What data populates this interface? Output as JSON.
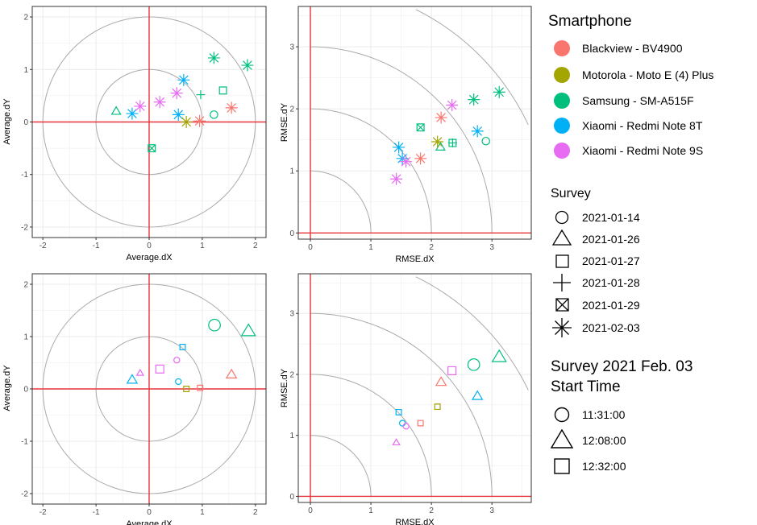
{
  "legend": {
    "smartphone": {
      "title": "Smartphone",
      "items": [
        {
          "label": "Blackview - BV4900",
          "color": "#F8766D"
        },
        {
          "label": "Motorola - Moto E (4) Plus",
          "color": "#A3A500"
        },
        {
          "label": "Samsung - SM-A515F",
          "color": "#00BF7D"
        },
        {
          "label": "Xiaomi - Redmi Note 8T",
          "color": "#00B0F6"
        },
        {
          "label": "Xiaomi - Redmi Note 9S",
          "color": "#E76BF3"
        }
      ]
    },
    "survey": {
      "title": "Survey",
      "items": [
        {
          "label": "2021-01-14",
          "shape": "circle"
        },
        {
          "label": "2021-01-26",
          "shape": "triangle"
        },
        {
          "label": "2021-01-27",
          "shape": "square"
        },
        {
          "label": "2021-01-28",
          "shape": "plus"
        },
        {
          "label": "2021-01-29",
          "shape": "boxx"
        },
        {
          "label": "2021-02-03",
          "shape": "asterisk"
        }
      ]
    },
    "start_time": {
      "title_line1": "Survey 2021 Feb. 03",
      "title_line2": "Start Time",
      "items": [
        {
          "label": "11:31:00",
          "shape": "circle"
        },
        {
          "label": "12:08:00",
          "shape": "triangle"
        },
        {
          "label": "12:32:00",
          "shape": "square"
        }
      ]
    }
  },
  "chart_data": [
    {
      "type": "scatter",
      "xlabel": "Average.dX",
      "ylabel": "Average.dY",
      "xlim": [
        -2.2,
        2.2
      ],
      "ylim": [
        -2.2,
        2.2
      ],
      "xticks": [
        -2,
        -1,
        0,
        1,
        2
      ],
      "yticks": [
        -2,
        -1,
        0,
        1,
        2
      ],
      "grid": true,
      "reference_circles_radius": [
        1,
        2
      ],
      "reference_lines": {
        "x": 0,
        "y": 0,
        "color": "#e8343a"
      },
      "points": [
        {
          "x": 1.22,
          "y": 0.14,
          "series": "Samsung - SM-A515F",
          "shape": "circle"
        },
        {
          "x": -0.62,
          "y": 0.2,
          "series": "Samsung - SM-A515F",
          "shape": "triangle"
        },
        {
          "x": 1.39,
          "y": 0.6,
          "series": "Samsung - SM-A515F",
          "shape": "square"
        },
        {
          "x": 0.97,
          "y": 0.52,
          "series": "Samsung - SM-A515F",
          "shape": "plus"
        },
        {
          "x": 0.05,
          "y": -0.5,
          "series": "Samsung - SM-A515F",
          "shape": "boxx"
        },
        {
          "x": 1.22,
          "y": 1.22,
          "series": "Samsung - SM-A515F",
          "shape": "asterisk"
        },
        {
          "x": 1.85,
          "y": 1.08,
          "series": "Samsung - SM-A515F",
          "shape": "asterisk"
        },
        {
          "x": -0.32,
          "y": 0.16,
          "series": "Xiaomi - Redmi Note 8T",
          "shape": "asterisk"
        },
        {
          "x": 0.65,
          "y": 0.8,
          "series": "Xiaomi - Redmi Note 8T",
          "shape": "asterisk"
        },
        {
          "x": 0.55,
          "y": 0.14,
          "series": "Xiaomi - Redmi Note 8T",
          "shape": "asterisk"
        },
        {
          "x": 0.2,
          "y": 0.38,
          "series": "Xiaomi - Redmi Note 9S",
          "shape": "asterisk"
        },
        {
          "x": 0.52,
          "y": 0.55,
          "series": "Xiaomi - Redmi Note 9S",
          "shape": "asterisk"
        },
        {
          "x": -0.17,
          "y": 0.3,
          "series": "Xiaomi - Redmi Note 9S",
          "shape": "asterisk"
        },
        {
          "x": 1.55,
          "y": 0.27,
          "series": "Blackview - BV4900",
          "shape": "asterisk"
        },
        {
          "x": 0.95,
          "y": 0.02,
          "series": "Blackview - BV4900",
          "shape": "asterisk"
        },
        {
          "x": 0.7,
          "y": 0.0,
          "series": "Motorola - Moto E (4) Plus",
          "shape": "asterisk"
        }
      ]
    },
    {
      "type": "scatter",
      "xlabel": "RMSE.dX",
      "ylabel": "RMSE.dY",
      "xlim": [
        -0.2,
        3.65
      ],
      "ylim": [
        -0.1,
        3.65
      ],
      "xticks": [
        0,
        1,
        2,
        3
      ],
      "yticks": [
        0,
        1,
        2,
        3
      ],
      "grid": true,
      "reference_arcs_radius": [
        1,
        2,
        3,
        4
      ],
      "reference_lines": {
        "x": 0,
        "y": 0,
        "color": "#e8343a"
      },
      "points": [
        {
          "x": 2.9,
          "y": 1.48,
          "series": "Samsung - SM-A515F",
          "shape": "circle"
        },
        {
          "x": 2.15,
          "y": 1.38,
          "series": "Samsung - SM-A515F",
          "shape": "triangle"
        },
        {
          "x": 2.35,
          "y": 1.45,
          "series": "Samsung - SM-A515F",
          "shape": "square"
        },
        {
          "x": 2.35,
          "y": 1.45,
          "series": "Samsung - SM-A515F",
          "shape": "plus"
        },
        {
          "x": 1.82,
          "y": 1.7,
          "series": "Samsung - SM-A515F",
          "shape": "boxx"
        },
        {
          "x": 2.7,
          "y": 2.15,
          "series": "Samsung - SM-A515F",
          "shape": "asterisk"
        },
        {
          "x": 3.12,
          "y": 2.27,
          "series": "Samsung - SM-A515F",
          "shape": "asterisk"
        },
        {
          "x": 2.76,
          "y": 1.64,
          "series": "Xiaomi - Redmi Note 8T",
          "shape": "asterisk"
        },
        {
          "x": 1.46,
          "y": 1.38,
          "series": "Xiaomi - Redmi Note 8T",
          "shape": "asterisk"
        },
        {
          "x": 1.52,
          "y": 1.2,
          "series": "Xiaomi - Redmi Note 8T",
          "shape": "asterisk"
        },
        {
          "x": 2.34,
          "y": 2.06,
          "series": "Xiaomi - Redmi Note 9S",
          "shape": "asterisk"
        },
        {
          "x": 1.58,
          "y": 1.15,
          "series": "Xiaomi - Redmi Note 9S",
          "shape": "asterisk"
        },
        {
          "x": 1.42,
          "y": 0.87,
          "series": "Xiaomi - Redmi Note 9S",
          "shape": "asterisk"
        },
        {
          "x": 2.16,
          "y": 1.86,
          "series": "Blackview - BV4900",
          "shape": "asterisk"
        },
        {
          "x": 1.82,
          "y": 1.2,
          "series": "Blackview - BV4900",
          "shape": "asterisk"
        },
        {
          "x": 2.1,
          "y": 1.47,
          "series": "Motorola - Moto E (4) Plus",
          "shape": "asterisk"
        }
      ]
    },
    {
      "type": "scatter",
      "xlabel": "Average.dX",
      "ylabel": "Average.dY",
      "xlim": [
        -2.2,
        2.2
      ],
      "ylim": [
        -2.2,
        2.2
      ],
      "xticks": [
        -2,
        -1,
        0,
        1,
        2
      ],
      "yticks": [
        -2,
        -1,
        0,
        1,
        2
      ],
      "grid": true,
      "reference_circles_radius": [
        1,
        2
      ],
      "reference_lines": {
        "x": 0,
        "y": 0,
        "color": "#e8343a"
      },
      "points": [
        {
          "x": 1.23,
          "y": 1.22,
          "series": "Samsung - SM-A515F",
          "shape": "circle",
          "size": "large"
        },
        {
          "x": 1.87,
          "y": 1.1,
          "series": "Samsung - SM-A515F",
          "shape": "triangle",
          "size": "large"
        },
        {
          "x": 1.55,
          "y": 0.27,
          "series": "Blackview - BV4900",
          "shape": "triangle",
          "size": "medium"
        },
        {
          "x": 0.96,
          "y": 0.02,
          "series": "Blackview - BV4900",
          "shape": "square",
          "size": "small"
        },
        {
          "x": 0.7,
          "y": 0.0,
          "series": "Motorola - Moto E (4) Plus",
          "shape": "square",
          "size": "small"
        },
        {
          "x": 0.2,
          "y": 0.38,
          "series": "Xiaomi - Redmi Note 9S",
          "shape": "square",
          "size": "medium"
        },
        {
          "x": 0.52,
          "y": 0.55,
          "series": "Xiaomi - Redmi Note 9S",
          "shape": "circle",
          "size": "small"
        },
        {
          "x": -0.17,
          "y": 0.3,
          "series": "Xiaomi - Redmi Note 9S",
          "shape": "triangle",
          "size": "small"
        },
        {
          "x": 0.63,
          "y": 0.8,
          "series": "Xiaomi - Redmi Note 8T",
          "shape": "square",
          "size": "small"
        },
        {
          "x": 0.55,
          "y": 0.14,
          "series": "Xiaomi - Redmi Note 8T",
          "shape": "circle",
          "size": "small"
        },
        {
          "x": -0.32,
          "y": 0.17,
          "series": "Xiaomi - Redmi Note 8T",
          "shape": "triangle",
          "size": "medium"
        }
      ]
    },
    {
      "type": "scatter",
      "xlabel": "RMSE.dX",
      "ylabel": "RMSE.dY",
      "xlim": [
        -0.2,
        3.65
      ],
      "ylim": [
        -0.1,
        3.65
      ],
      "xticks": [
        0,
        1,
        2,
        3
      ],
      "yticks": [
        0,
        1,
        2,
        3
      ],
      "grid": true,
      "reference_arcs_radius": [
        1,
        2,
        3,
        4
      ],
      "reference_lines": {
        "x": 0,
        "y": 0,
        "color": "#e8343a"
      },
      "points": [
        {
          "x": 3.12,
          "y": 2.28,
          "series": "Samsung - SM-A515F",
          "shape": "triangle",
          "size": "large"
        },
        {
          "x": 2.7,
          "y": 2.16,
          "series": "Samsung - SM-A515F",
          "shape": "circle",
          "size": "large"
        },
        {
          "x": 2.34,
          "y": 2.06,
          "series": "Xiaomi - Redmi Note 9S",
          "shape": "square",
          "size": "medium"
        },
        {
          "x": 2.16,
          "y": 1.87,
          "series": "Blackview - BV4900",
          "shape": "triangle",
          "size": "medium"
        },
        {
          "x": 2.76,
          "y": 1.64,
          "series": "Xiaomi - Redmi Note 8T",
          "shape": "triangle",
          "size": "medium"
        },
        {
          "x": 2.1,
          "y": 1.47,
          "series": "Motorola - Moto E (4) Plus",
          "shape": "square",
          "size": "small"
        },
        {
          "x": 1.82,
          "y": 1.2,
          "series": "Blackview - BV4900",
          "shape": "square",
          "size": "small"
        },
        {
          "x": 1.46,
          "y": 1.38,
          "series": "Xiaomi - Redmi Note 8T",
          "shape": "square",
          "size": "small"
        },
        {
          "x": 1.52,
          "y": 1.2,
          "series": "Xiaomi - Redmi Note 8T",
          "shape": "circle",
          "size": "small"
        },
        {
          "x": 1.58,
          "y": 1.15,
          "series": "Xiaomi - Redmi Note 9S",
          "shape": "circle",
          "size": "small"
        },
        {
          "x": 1.42,
          "y": 0.88,
          "series": "Xiaomi - Redmi Note 9S",
          "shape": "triangle",
          "size": "small"
        }
      ]
    }
  ]
}
